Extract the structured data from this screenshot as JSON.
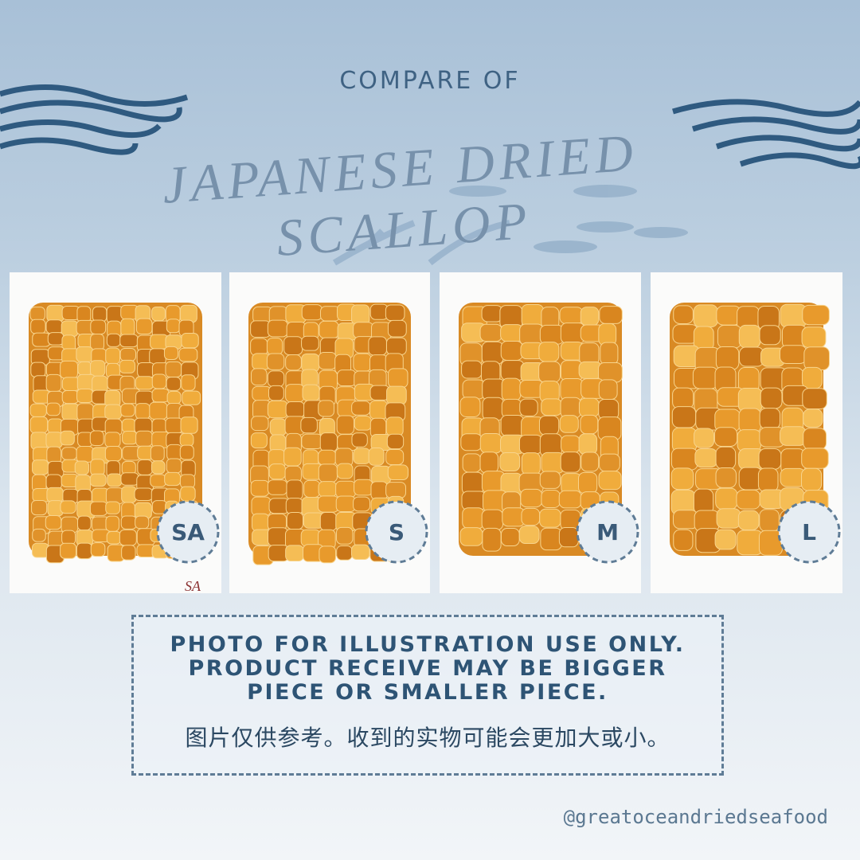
{
  "header": {
    "subtitle": "COMPARE OF",
    "title": "JAPANESE DRIED SCALLOP"
  },
  "products": [
    {
      "size": "SA",
      "note": "SA"
    },
    {
      "size": "S"
    },
    {
      "size": "M"
    },
    {
      "size": "L"
    }
  ],
  "notice": {
    "lines": [
      "PHOTO FOR ILLUSTRATION USE ONLY.",
      "PRODUCT RECEIVE MAY BE BIGGER",
      "PIECE OR SMALLER PIECE."
    ],
    "chinese": "图片仅供参考。收到的实物可能会更加大或小。"
  },
  "footer": {
    "handle": "@greatoceandriedseafood"
  }
}
